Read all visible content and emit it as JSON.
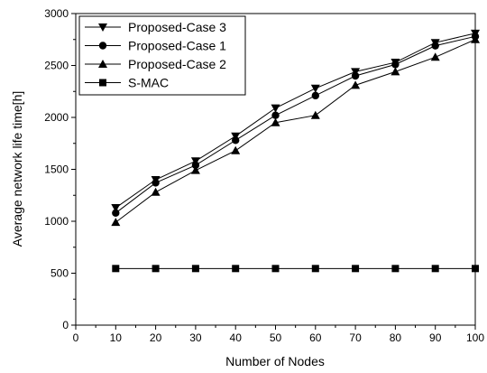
{
  "chart_data": {
    "type": "line",
    "title": "",
    "xlabel": "Number of Nodes",
    "ylabel": "Average network life time[h]",
    "xlim": [
      0,
      100
    ],
    "ylim": [
      0,
      3000
    ],
    "xticks": [
      0,
      10,
      20,
      30,
      40,
      50,
      60,
      70,
      80,
      90,
      100
    ],
    "yticks": [
      0,
      500,
      1000,
      1500,
      2000,
      2500,
      3000
    ],
    "grid": false,
    "legend_position": "top-left",
    "x": [
      10,
      20,
      30,
      40,
      50,
      60,
      70,
      80,
      90,
      100
    ],
    "series": [
      {
        "name": "Proposed-Case 3",
        "marker": "triangle-down",
        "color": "#000000",
        "values": [
          1130,
          1400,
          1580,
          1820,
          2090,
          2280,
          2440,
          2530,
          2720,
          2810
        ]
      },
      {
        "name": "Proposed-Case 1",
        "marker": "circle",
        "color": "#000000",
        "values": [
          1080,
          1370,
          1540,
          1780,
          2020,
          2210,
          2400,
          2510,
          2690,
          2780
        ]
      },
      {
        "name": "Proposed-Case 2",
        "marker": "triangle-up",
        "color": "#000000",
        "values": [
          990,
          1280,
          1490,
          1680,
          1950,
          2020,
          2310,
          2440,
          2580,
          2750
        ]
      },
      {
        "name": "S-MAC",
        "marker": "square",
        "color": "#000000",
        "values": [
          545,
          545,
          545,
          545,
          545,
          545,
          545,
          545,
          545,
          545
        ]
      }
    ]
  }
}
